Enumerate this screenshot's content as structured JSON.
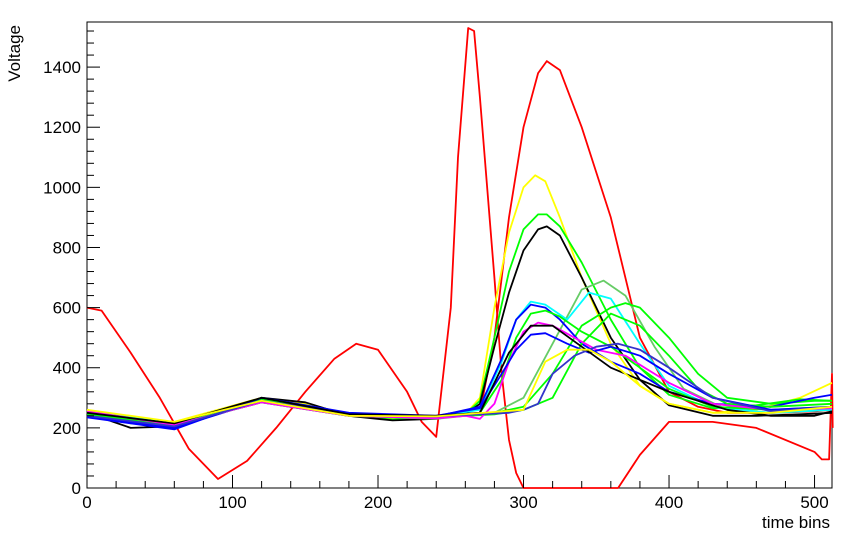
{
  "chart_data": {
    "type": "line",
    "title": "",
    "xlabel": "time bins",
    "ylabel": "Voltage",
    "xlim": [
      0,
      512
    ],
    "ylim": [
      0,
      1550
    ],
    "xticks": [
      0,
      100,
      200,
      300,
      400,
      500
    ],
    "xtick_labels": [
      "0",
      "100",
      "200",
      "300",
      "400",
      "500"
    ],
    "yticks": [
      0,
      200,
      400,
      600,
      800,
      1000,
      1200,
      1400
    ],
    "ytick_labels": [
      "0",
      "200",
      "400",
      "600",
      "800",
      "1000",
      "1200",
      "1400"
    ],
    "grid": false,
    "legend": "none",
    "colors": {
      "red": "#ff0000",
      "yellow": "#ffff00",
      "green": "#00ff00",
      "black": "#000000",
      "blue": "#0000ff",
      "cyan": "#00ffff",
      "magenta": "#ff00ff",
      "lightgreen": "#66cc66",
      "dimblue": "#3333cc"
    },
    "series": [
      {
        "color": "red",
        "x": [
          0,
          10,
          30,
          50,
          70,
          90,
          110,
          130,
          150,
          170,
          185,
          200,
          220,
          230,
          240,
          250,
          255,
          262,
          266,
          270,
          280,
          285,
          290,
          295,
          300,
          305,
          310,
          320,
          330,
          350,
          360,
          365,
          380,
          400,
          430,
          460,
          500,
          505,
          510,
          512,
          512.5
        ],
        "y": [
          600,
          590,
          450,
          300,
          130,
          30,
          90,
          200,
          320,
          430,
          480,
          460,
          320,
          220,
          170,
          600,
          1100,
          1530,
          1520,
          1300,
          700,
          380,
          160,
          50,
          0,
          0,
          0,
          0,
          0,
          0,
          0,
          0,
          110,
          220,
          220,
          200,
          120,
          95,
          95,
          380,
          200
        ]
      },
      {
        "color": "red",
        "x": [
          0,
          30,
          60,
          90,
          120,
          150,
          180,
          210,
          240,
          260,
          270,
          280,
          290,
          300,
          310,
          316,
          325,
          340,
          360,
          380,
          400,
          420,
          440,
          470,
          500,
          512
        ],
        "y": [
          250,
          220,
          215,
          250,
          290,
          270,
          245,
          230,
          240,
          245,
          250,
          500,
          900,
          1200,
          1380,
          1420,
          1390,
          1200,
          900,
          500,
          320,
          270,
          250,
          250,
          255,
          260
        ]
      },
      {
        "color": "yellow",
        "x": [
          0,
          30,
          60,
          90,
          120,
          150,
          180,
          210,
          240,
          260,
          270,
          280,
          290,
          300,
          308,
          315,
          325,
          340,
          360,
          380,
          400,
          430,
          460,
          490,
          512
        ],
        "y": [
          260,
          220,
          220,
          260,
          300,
          280,
          245,
          230,
          235,
          245,
          300,
          600,
          850,
          1000,
          1040,
          1020,
          900,
          700,
          480,
          340,
          280,
          250,
          260,
          300,
          350
        ]
      },
      {
        "color": "green",
        "x": [
          0,
          30,
          60,
          90,
          120,
          150,
          180,
          210,
          240,
          260,
          270,
          280,
          290,
          300,
          310,
          316,
          325,
          340,
          360,
          380,
          400,
          430,
          460,
          490,
          512
        ],
        "y": [
          255,
          215,
          215,
          255,
          295,
          275,
          240,
          228,
          232,
          245,
          290,
          500,
          720,
          860,
          910,
          910,
          870,
          750,
          560,
          400,
          310,
          265,
          275,
          295,
          290
        ]
      },
      {
        "color": "black",
        "x": [
          0,
          30,
          60,
          90,
          120,
          150,
          180,
          210,
          240,
          260,
          270,
          280,
          290,
          300,
          310,
          316,
          325,
          340,
          360,
          380,
          400,
          430,
          460,
          490,
          512
        ],
        "y": [
          250,
          200,
          205,
          250,
          300,
          285,
          240,
          225,
          230,
          245,
          280,
          470,
          650,
          790,
          860,
          870,
          840,
          700,
          500,
          360,
          275,
          240,
          240,
          245,
          250
        ]
      },
      {
        "color": "lightgreen",
        "x": [
          0,
          60,
          120,
          180,
          240,
          280,
          300,
          320,
          340,
          355,
          370,
          390,
          410,
          440,
          470,
          512
        ],
        "y": [
          250,
          210,
          290,
          240,
          230,
          250,
          300,
          480,
          660,
          690,
          640,
          470,
          330,
          260,
          250,
          260
        ]
      },
      {
        "color": "cyan",
        "x": [
          0,
          60,
          120,
          180,
          240,
          270,
          285,
          295,
          305,
          315,
          330,
          345,
          360,
          380,
          400,
          430,
          470,
          512
        ],
        "y": [
          255,
          215,
          290,
          240,
          235,
          260,
          420,
          560,
          620,
          610,
          560,
          650,
          630,
          480,
          340,
          270,
          250,
          260
        ]
      },
      {
        "color": "green",
        "x": [
          0,
          60,
          120,
          180,
          240,
          280,
          300,
          320,
          340,
          360,
          370,
          380,
          400,
          420,
          440,
          470,
          500,
          512
        ],
        "y": [
          245,
          210,
          285,
          240,
          232,
          250,
          270,
          380,
          540,
          600,
          615,
          600,
          500,
          380,
          300,
          280,
          290,
          290
        ]
      },
      {
        "color": "blue",
        "x": [
          0,
          60,
          120,
          180,
          240,
          270,
          285,
          295,
          305,
          315,
          325,
          340,
          360,
          380,
          400,
          430,
          470,
          500,
          512
        ],
        "y": [
          240,
          200,
          290,
          245,
          238,
          270,
          430,
          560,
          610,
          600,
          560,
          480,
          420,
          380,
          320,
          280,
          270,
          300,
          310
        ]
      },
      {
        "color": "green",
        "x": [
          0,
          60,
          120,
          180,
          240,
          270,
          285,
          295,
          305,
          315,
          325,
          340,
          360,
          380,
          400,
          430,
          470,
          512
        ],
        "y": [
          250,
          210,
          285,
          240,
          235,
          250,
          360,
          500,
          580,
          590,
          570,
          520,
          470,
          400,
          330,
          270,
          260,
          270
        ]
      },
      {
        "color": "green",
        "x": [
          0,
          60,
          120,
          180,
          240,
          280,
          300,
          320,
          340,
          360,
          380,
          400,
          420,
          440,
          470,
          512
        ],
        "y": [
          255,
          210,
          290,
          240,
          235,
          245,
          260,
          300,
          480,
          580,
          540,
          440,
          330,
          280,
          270,
          280
        ]
      },
      {
        "color": "magenta",
        "x": [
          0,
          60,
          120,
          180,
          240,
          260,
          270,
          280,
          290,
          300,
          310,
          320,
          335,
          350,
          370,
          400,
          430,
          470,
          512
        ],
        "y": [
          255,
          210,
          285,
          240,
          232,
          240,
          230,
          280,
          420,
          520,
          550,
          540,
          500,
          460,
          440,
          350,
          280,
          260,
          265
        ]
      },
      {
        "color": "blue",
        "x": [
          0,
          60,
          120,
          180,
          240,
          270,
          285,
          295,
          305,
          315,
          330,
          345,
          360,
          380,
          400,
          430,
          470,
          512
        ],
        "y": [
          235,
          195,
          300,
          250,
          240,
          265,
          380,
          460,
          510,
          515,
          480,
          450,
          470,
          440,
          380,
          300,
          260,
          270
        ]
      },
      {
        "color": "dimblue",
        "x": [
          0,
          60,
          120,
          180,
          240,
          290,
          300,
          310,
          320,
          335,
          350,
          365,
          380,
          400,
          430,
          470,
          512
        ],
        "y": [
          240,
          205,
          290,
          245,
          238,
          250,
          260,
          280,
          380,
          440,
          470,
          480,
          460,
          400,
          300,
          255,
          270
        ]
      },
      {
        "color": "black",
        "x": [
          0,
          60,
          120,
          180,
          240,
          270,
          290,
          305,
          320,
          340,
          360,
          380,
          400,
          420,
          440,
          470,
          500,
          512
        ],
        "y": [
          250,
          215,
          300,
          245,
          240,
          250,
          450,
          540,
          540,
          470,
          400,
          360,
          320,
          290,
          260,
          240,
          240,
          255
        ]
      },
      {
        "color": "yellow",
        "x": [
          0,
          60,
          120,
          180,
          240,
          300,
          315,
          330,
          345,
          360,
          380,
          400,
          430,
          470,
          512
        ],
        "y": [
          260,
          220,
          290,
          240,
          238,
          260,
          420,
          460,
          460,
          420,
          340,
          280,
          250,
          250,
          270
        ]
      }
    ]
  }
}
